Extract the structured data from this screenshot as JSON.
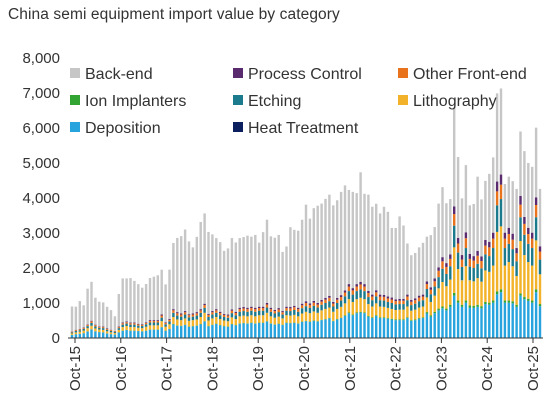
{
  "chart_data": {
    "type": "bar",
    "stacked": true,
    "title": "China semi equipment import value by category",
    "xlabel": "",
    "ylabel": "",
    "ylim": [
      0,
      8000
    ],
    "yticks": [
      0,
      1000,
      2000,
      3000,
      4000,
      5000,
      6000,
      7000,
      8000
    ],
    "ytick_labels": [
      "0",
      "1,000",
      "2,000",
      "3,000",
      "4,000",
      "5,000",
      "6,000",
      "7,000",
      "8,000"
    ],
    "x_tick_labels": [
      "Oct-15",
      "Oct-16",
      "Oct-17",
      "Oct-18",
      "Oct-19",
      "Oct-20",
      "Oct-21",
      "Oct-22",
      "Oct-23",
      "Oct-24",
      "Oct-25"
    ],
    "legend_position": "top",
    "grid": false,
    "series": [
      {
        "name": "Heat Treatment",
        "color": "#0b1f5e",
        "values": [
          5,
          5,
          5,
          5,
          5,
          5,
          7,
          7,
          7,
          7,
          7,
          7,
          7,
          7,
          7,
          7,
          7,
          7,
          7,
          7,
          7,
          7,
          7,
          7,
          7,
          7,
          10,
          10,
          10,
          10,
          10,
          10,
          10,
          10,
          10,
          10,
          10,
          10,
          10,
          10,
          10,
          10,
          10,
          10,
          10,
          10,
          10,
          10,
          10,
          10,
          10,
          10,
          10,
          10,
          10,
          10,
          10,
          10,
          10,
          10,
          10,
          10,
          10,
          10,
          10,
          10,
          10,
          10,
          10,
          10,
          10,
          10,
          10,
          10,
          10,
          10,
          10,
          10,
          10,
          10,
          10,
          10,
          10,
          10,
          10,
          10,
          10,
          10,
          10,
          10,
          10,
          10,
          10,
          10,
          10,
          10,
          10,
          10,
          10,
          10,
          10,
          10,
          10,
          10,
          10,
          10,
          10,
          10,
          10,
          10,
          10,
          10,
          10,
          10,
          10,
          10,
          10,
          10,
          10,
          10,
          10
        ]
      },
      {
        "name": "Deposition",
        "color": "#27a4dd",
        "values": [
          80,
          100,
          110,
          130,
          180,
          240,
          180,
          160,
          150,
          120,
          100,
          90,
          150,
          200,
          220,
          200,
          200,
          190,
          180,
          200,
          230,
          230,
          230,
          300,
          200,
          250,
          380,
          340,
          330,
          360,
          310,
          320,
          340,
          380,
          460,
          320,
          360,
          390,
          350,
          320,
          310,
          380,
          350,
          400,
          410,
          400,
          420,
          400,
          420,
          420,
          460,
          400,
          370,
          390,
          360,
          420,
          410,
          420,
          400,
          450,
          470,
          450,
          480,
          460,
          500,
          520,
          550,
          470,
          520,
          560,
          620,
          700,
          640,
          700,
          720,
          700,
          600,
          560,
          620,
          560,
          560,
          540,
          520,
          500,
          500,
          500,
          560,
          480,
          500,
          540,
          560,
          690,
          600,
          700,
          780,
          840,
          780,
          880,
          1200,
          1000,
          880,
          1000,
          860,
          850,
          880,
          840,
          960,
          940,
          1000,
          1240,
          1300,
          1000,
          1000,
          980,
          880,
          1200,
          1100,
          1050,
          1000,
          1300,
          900
        ]
      },
      {
        "name": "Ion Implanters",
        "color": "#33a532",
        "values": [
          5,
          5,
          5,
          5,
          5,
          5,
          5,
          5,
          5,
          5,
          5,
          5,
          5,
          5,
          5,
          5,
          5,
          5,
          5,
          5,
          5,
          5,
          5,
          5,
          5,
          5,
          10,
          10,
          10,
          10,
          10,
          10,
          10,
          10,
          10,
          10,
          10,
          10,
          10,
          10,
          10,
          10,
          10,
          10,
          10,
          10,
          10,
          10,
          10,
          10,
          10,
          10,
          10,
          10,
          10,
          10,
          10,
          10,
          10,
          10,
          10,
          10,
          10,
          10,
          10,
          10,
          10,
          10,
          10,
          10,
          20,
          20,
          20,
          20,
          20,
          20,
          20,
          20,
          20,
          20,
          20,
          20,
          20,
          20,
          20,
          20,
          20,
          20,
          20,
          20,
          20,
          40,
          40,
          40,
          50,
          50,
          50,
          60,
          80,
          60,
          60,
          60,
          60,
          60,
          60,
          60,
          60,
          60,
          60,
          80,
          80,
          60,
          60,
          60,
          60,
          60,
          60,
          60,
          60,
          80,
          60
        ]
      },
      {
        "name": "Lithography",
        "color": "#f2b32a",
        "values": [
          40,
          50,
          60,
          70,
          90,
          100,
          80,
          70,
          70,
          60,
          50,
          40,
          70,
          100,
          110,
          100,
          100,
          90,
          90,
          110,
          120,
          120,
          120,
          170,
          110,
          130,
          200,
          170,
          160,
          180,
          160,
          170,
          170,
          200,
          240,
          160,
          180,
          190,
          170,
          160,
          150,
          190,
          170,
          200,
          210,
          200,
          210,
          200,
          210,
          210,
          240,
          200,
          190,
          200,
          180,
          210,
          210,
          220,
          200,
          230,
          260,
          240,
          260,
          240,
          270,
          290,
          300,
          260,
          290,
          310,
          340,
          380,
          360,
          380,
          400,
          380,
          340,
          310,
          340,
          310,
          300,
          290,
          280,
          270,
          280,
          280,
          310,
          270,
          280,
          300,
          310,
          420,
          380,
          460,
          580,
          700,
          640,
          720,
          1300,
          900,
          700,
          980,
          720,
          700,
          760,
          700,
          900,
          880,
          1000,
          1700,
          1800,
          1000,
          1100,
          1000,
          820,
          1500,
          1200,
          1050,
          1000,
          1400,
          850
        ]
      },
      {
        "name": "Etching",
        "color": "#1b7a8c",
        "values": [
          30,
          40,
          40,
          50,
          60,
          80,
          60,
          50,
          50,
          40,
          40,
          30,
          50,
          70,
          70,
          70,
          70,
          60,
          60,
          70,
          80,
          80,
          80,
          100,
          70,
          80,
          120,
          110,
          100,
          110,
          100,
          100,
          110,
          120,
          140,
          100,
          110,
          120,
          110,
          100,
          100,
          120,
          110,
          130,
          130,
          130,
          130,
          130,
          130,
          130,
          150,
          130,
          120,
          130,
          110,
          130,
          130,
          140,
          130,
          150,
          160,
          150,
          160,
          150,
          160,
          170,
          180,
          150,
          170,
          180,
          200,
          230,
          210,
          230,
          240,
          230,
          200,
          180,
          200,
          180,
          180,
          170,
          170,
          160,
          160,
          160,
          180,
          160,
          170,
          180,
          180,
          240,
          220,
          260,
          320,
          380,
          350,
          380,
          620,
          470,
          380,
          520,
          390,
          380,
          410,
          380,
          460,
          450,
          500,
          760,
          780,
          500,
          520,
          490,
          420,
          680,
          580,
          520,
          500,
          660,
          420
        ]
      },
      {
        "name": "Other Front-end",
        "color": "#e8731c",
        "values": [
          20,
          25,
          25,
          30,
          35,
          45,
          35,
          30,
          30,
          25,
          25,
          20,
          30,
          40,
          40,
          40,
          40,
          35,
          35,
          40,
          45,
          45,
          45,
          60,
          40,
          45,
          70,
          65,
          60,
          65,
          60,
          60,
          65,
          70,
          80,
          60,
          65,
          70,
          65,
          60,
          60,
          70,
          65,
          75,
          75,
          75,
          75,
          75,
          75,
          75,
          85,
          75,
          70,
          75,
          65,
          75,
          75,
          80,
          75,
          85,
          90,
          85,
          90,
          85,
          90,
          95,
          100,
          85,
          95,
          100,
          110,
          130,
          120,
          130,
          140,
          130,
          115,
          105,
          115,
          105,
          105,
          100,
          100,
          95,
          95,
          95,
          105,
          95,
          100,
          105,
          105,
          140,
          130,
          150,
          180,
          210,
          200,
          210,
          330,
          260,
          210,
          280,
          220,
          210,
          230,
          210,
          250,
          250,
          270,
          400,
          410,
          270,
          280,
          270,
          230,
          360,
          310,
          280,
          270,
          350,
          230
        ]
      },
      {
        "name": "Process Control",
        "color": "#5a2a6e",
        "values": [
          10,
          10,
          10,
          15,
          15,
          20,
          15,
          15,
          15,
          15,
          10,
          10,
          15,
          20,
          20,
          20,
          20,
          20,
          20,
          20,
          25,
          25,
          25,
          30,
          20,
          25,
          35,
          35,
          30,
          35,
          30,
          30,
          35,
          35,
          40,
          30,
          35,
          35,
          35,
          30,
          30,
          35,
          35,
          40,
          40,
          40,
          40,
          40,
          40,
          40,
          45,
          40,
          35,
          40,
          35,
          40,
          40,
          40,
          40,
          45,
          50,
          45,
          50,
          45,
          50,
          50,
          55,
          45,
          50,
          55,
          60,
          70,
          65,
          70,
          75,
          70,
          60,
          55,
          60,
          55,
          55,
          55,
          55,
          50,
          50,
          50,
          55,
          50,
          50,
          55,
          55,
          75,
          70,
          80,
          100,
          120,
          110,
          130,
          220,
          160,
          130,
          170,
          140,
          130,
          140,
          130,
          160,
          160,
          170,
          280,
          290,
          170,
          180,
          170,
          150,
          250,
          200,
          180,
          170,
          220,
          150
        ]
      },
      {
        "name": "Back-end",
        "color": "#c6c6c6",
        "values": [
          710,
          660,
          800,
          630,
          1020,
          1110,
          770,
          700,
          690,
          620,
          560,
          420,
          930,
          1260,
          1230,
          1270,
          1190,
          1130,
          1040,
          1090,
          1200,
          1240,
          1280,
          1280,
          1080,
          1410,
          1890,
          2120,
          2210,
          2330,
          2080,
          1890,
          2150,
          2490,
          2580,
          2340,
          2190,
          2030,
          1990,
          1800,
          1890,
          2040,
          1980,
          1990,
          2000,
          2060,
          2000,
          2080,
          1830,
          2130,
          2380,
          2040,
          2060,
          2090,
          1690,
          1720,
          2280,
          2170,
          2200,
          2400,
          2760,
          2420,
          2650,
          2780,
          2750,
          2830,
          2890,
          2760,
          2790,
          2950,
          3000,
          2690,
          2750,
          2600,
          3130,
          2580,
          2750,
          2510,
          2470,
          2320,
          2520,
          2420,
          1990,
          2040,
          2360,
          2100,
          1460,
          1280,
          1300,
          1380,
          1480,
          1280,
          1490,
          1470,
          1820,
          2000,
          1710,
          1580,
          2830,
          2310,
          1620,
          1920,
          1390,
          1490,
          2120,
          1630,
          1690,
          1940,
          2150,
          2520,
          2460,
          1390,
          1460,
          1500,
          1690,
          1840,
          1880,
          1850,
          1880,
          1990,
          1640
        ]
      }
    ]
  }
}
